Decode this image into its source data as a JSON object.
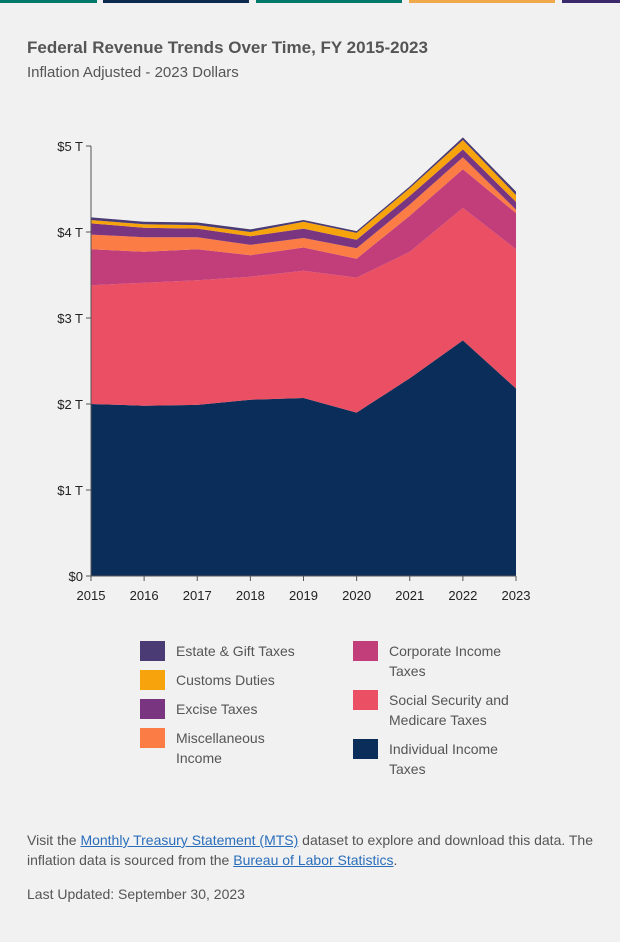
{
  "top_strips": [
    "#00796b",
    "#0d2a4f",
    "#00796b",
    "#f0a94a",
    "#3b2a6b"
  ],
  "title": "Federal Revenue Trends Over Time, FY 2015-2023",
  "subtitle": "Inflation Adjusted - 2023 Dollars",
  "chart_data": {
    "type": "area",
    "stacked": true,
    "x": [
      "2015",
      "2016",
      "2017",
      "2018",
      "2019",
      "2020",
      "2021",
      "2022",
      "2023"
    ],
    "y_ticks": [
      "$0",
      "$1 T",
      "$2 T",
      "$3 T",
      "$4 T",
      "$5 T"
    ],
    "ylim": [
      0,
      5
    ],
    "unit": "trillions of 2023 dollars",
    "series": [
      {
        "name": "Individual Income Taxes",
        "color": "#0b2d59",
        "values": [
          2.0,
          1.98,
          1.99,
          2.05,
          2.07,
          1.9,
          2.3,
          2.74,
          2.18
        ]
      },
      {
        "name": "Social Security and Medicare Taxes",
        "color": "#ea4f63",
        "values": [
          1.38,
          1.43,
          1.45,
          1.43,
          1.48,
          1.57,
          1.47,
          1.54,
          1.62
        ]
      },
      {
        "name": "Corporate Income Taxes",
        "color": "#c13e7a",
        "values": [
          0.42,
          0.36,
          0.36,
          0.25,
          0.27,
          0.22,
          0.42,
          0.45,
          0.42
        ]
      },
      {
        "name": "Miscellaneous Income",
        "color": "#fb7c45",
        "values": [
          0.17,
          0.17,
          0.14,
          0.12,
          0.11,
          0.12,
          0.13,
          0.14,
          0.04
        ]
      },
      {
        "name": "Excise Taxes",
        "color": "#7a3580",
        "values": [
          0.13,
          0.11,
          0.1,
          0.1,
          0.11,
          0.1,
          0.1,
          0.09,
          0.09
        ]
      },
      {
        "name": "Customs Duties",
        "color": "#f7a30c",
        "values": [
          0.04,
          0.04,
          0.04,
          0.05,
          0.08,
          0.08,
          0.09,
          0.11,
          0.08
        ]
      },
      {
        "name": "Estate & Gift Taxes",
        "color": "#4a3b74",
        "values": [
          0.03,
          0.03,
          0.03,
          0.03,
          0.02,
          0.02,
          0.02,
          0.03,
          0.04
        ]
      }
    ]
  },
  "legend": [
    {
      "label": "Estate & Gift Taxes",
      "color": "#4a3b74"
    },
    {
      "label": "Customs Duties",
      "color": "#f7a30c"
    },
    {
      "label": "Excise Taxes",
      "color": "#7a3580"
    },
    {
      "label": "Miscellaneous Income",
      "color": "#fb7c45"
    },
    {
      "label": "Corporate Income Taxes",
      "color": "#c13e7a"
    },
    {
      "label": "Social Security and Medicare Taxes",
      "color": "#ea4f63"
    },
    {
      "label": "Individual Income Taxes",
      "color": "#0b2d59"
    }
  ],
  "footer": {
    "pre": "Visit the ",
    "mts_link": "Monthly Treasury Statement (MTS)",
    "mid": " dataset to explore and download this data. The inflation data is sourced from the ",
    "bls_link": "Bureau of Labor Statistics",
    "post": "."
  },
  "updated": "Last Updated: September 30, 2023"
}
